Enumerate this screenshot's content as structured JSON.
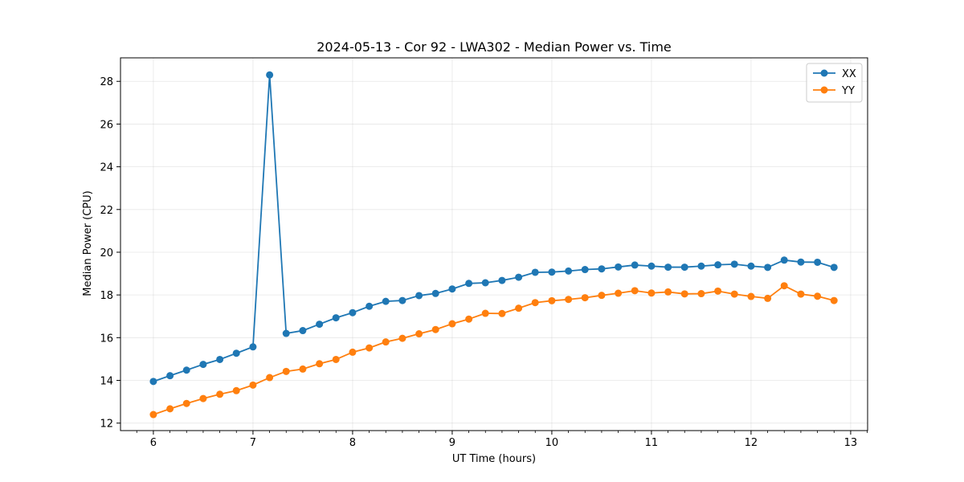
{
  "chart_data": {
    "type": "line",
    "title": "2024-05-13 - Cor 92 - LWA302 - Median Power vs. Time",
    "xlabel": "UT Time (hours)",
    "ylabel": "Median Power (CPU)",
    "xlim": [
      5.67,
      13.17
    ],
    "ylim": [
      11.65,
      29.1
    ],
    "xticks": [
      6,
      7,
      8,
      9,
      10,
      11,
      12,
      13
    ],
    "yticks": [
      12,
      14,
      16,
      18,
      20,
      22,
      24,
      26,
      28
    ],
    "grid": true,
    "legend_position": "top-right",
    "x": [
      6.0,
      6.167,
      6.333,
      6.5,
      6.667,
      6.833,
      7.0,
      7.167,
      7.333,
      7.5,
      7.667,
      7.833,
      8.0,
      8.167,
      8.333,
      8.5,
      8.667,
      8.833,
      9.0,
      9.167,
      9.333,
      9.5,
      9.667,
      9.833,
      10.0,
      10.167,
      10.333,
      10.5,
      10.667,
      10.833,
      11.0,
      11.167,
      11.333,
      11.5,
      11.667,
      11.833,
      12.0,
      12.167,
      12.333,
      12.5,
      12.667,
      12.833
    ],
    "series": [
      {
        "name": "XX",
        "color": "#1f77b4",
        "values": [
          13.95,
          14.22,
          14.48,
          14.75,
          14.98,
          15.27,
          15.57,
          28.3,
          16.2,
          16.33,
          16.63,
          16.93,
          17.17,
          17.47,
          17.7,
          17.74,
          17.97,
          18.07,
          18.28,
          18.54,
          18.57,
          18.68,
          18.83,
          19.06,
          19.07,
          19.12,
          19.19,
          19.22,
          19.31,
          19.4,
          19.35,
          19.3,
          19.3,
          19.35,
          19.41,
          19.44,
          19.35,
          19.29,
          19.63,
          19.54,
          19.53,
          19.29
        ]
      },
      {
        "name": "YY",
        "color": "#ff7f0e",
        "values": [
          12.4,
          12.67,
          12.92,
          13.15,
          13.35,
          13.52,
          13.78,
          14.13,
          14.42,
          14.53,
          14.78,
          14.98,
          15.32,
          15.52,
          15.8,
          15.97,
          16.18,
          16.38,
          16.65,
          16.87,
          17.14,
          17.13,
          17.38,
          17.64,
          17.73,
          17.79,
          17.87,
          17.98,
          18.08,
          18.2,
          18.09,
          18.14,
          18.05,
          18.06,
          18.18,
          18.04,
          17.93,
          17.84,
          18.43,
          18.04,
          17.94,
          17.74
        ]
      }
    ]
  }
}
